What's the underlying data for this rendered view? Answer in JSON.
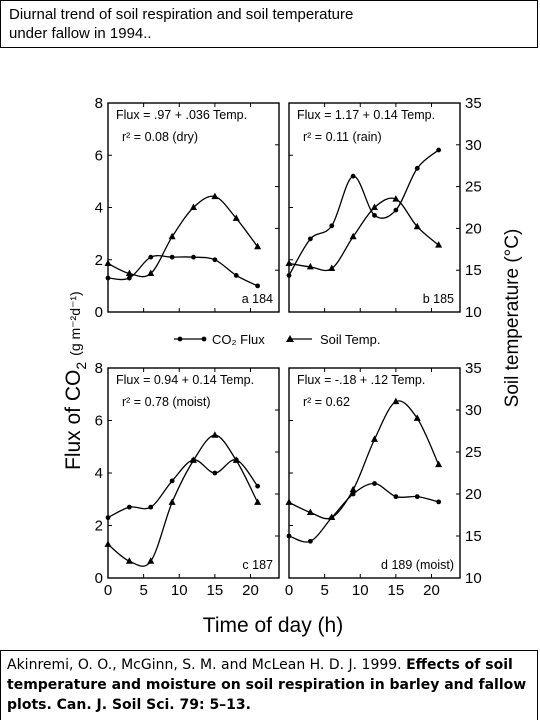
{
  "header": {
    "title_line1": "Diurnal trend of soil respiration and soil temperature",
    "title_line2": "under fallow in 1994.."
  },
  "citation": {
    "plain": "Akinremi, O. O., McGinn, S. M. and McLean H. D. J. 1999. ",
    "bold": "Effects of soil temperature and moisture on soil respiration in barley and fallow plots. Can. J. Soil Sci. 79: 5–13."
  },
  "figure": {
    "ylabel_left_main": "Flux of CO",
    "ylabel_left_sub": "2",
    "ylabel_left_units": "(g m⁻²d⁻¹)",
    "ylabel_right": "Soil temperature (°C)",
    "xlabel": "Time of day (h)",
    "legend_flux": "CO₂ Flux",
    "legend_temp": "Soil Temp."
  },
  "chart_data": [
    {
      "type": "line",
      "panel": "a 184",
      "equation": "Flux = .97 + .036 Temp.",
      "r2": "r² = 0.08   (dry)",
      "xlim": [
        0,
        24
      ],
      "ylim_left": [
        0,
        8
      ],
      "ylim_right": [
        10,
        35
      ],
      "series": [
        {
          "name": "CO₂ Flux",
          "axis": "left",
          "x": [
            0,
            3,
            6,
            9,
            12,
            15,
            18,
            21
          ],
          "values": [
            1.3,
            1.3,
            2.1,
            2.1,
            2.1,
            2.0,
            1.4,
            1.0
          ]
        },
        {
          "name": "Soil Temp.",
          "axis": "right",
          "x": [
            0,
            3,
            6,
            9,
            12,
            15,
            18,
            21
          ],
          "values": [
            15.8,
            14.6,
            14.6,
            19.0,
            22.5,
            23.8,
            21.2,
            17.8
          ]
        }
      ]
    },
    {
      "type": "line",
      "panel": "b 185",
      "equation": "Flux = 1.17 + 0.14 Temp.",
      "r2": "r² = 0.11   (rain)",
      "xlim": [
        0,
        24
      ],
      "ylim_left": [
        0,
        8
      ],
      "ylim_right": [
        10,
        35
      ],
      "series": [
        {
          "name": "CO₂ Flux",
          "axis": "left",
          "x": [
            0,
            3,
            6,
            9,
            12,
            15,
            18,
            21
          ],
          "values": [
            1.4,
            2.8,
            3.3,
            5.2,
            3.7,
            3.9,
            5.5,
            6.2
          ]
        },
        {
          "name": "Soil Temp.",
          "axis": "right",
          "x": [
            0,
            3,
            6,
            9,
            12,
            15,
            18,
            21
          ],
          "values": [
            15.8,
            15.4,
            15.2,
            19.0,
            22.5,
            23.5,
            20.2,
            18.0
          ]
        }
      ]
    },
    {
      "type": "line",
      "panel": "c 187",
      "equation": "Flux = 0.94 + 0.14 Temp.",
      "r2": "r² = 0.78   (moist)",
      "xlim": [
        0,
        24
      ],
      "ylim_left": [
        0,
        8
      ],
      "ylim_right": [
        10,
        35
      ],
      "series": [
        {
          "name": "CO₂ Flux",
          "axis": "left",
          "x": [
            0,
            3,
            6,
            9,
            12,
            15,
            18,
            21
          ],
          "values": [
            2.3,
            2.7,
            2.7,
            3.7,
            4.5,
            4.0,
            4.5,
            3.5
          ]
        },
        {
          "name": "Soil Temp.",
          "axis": "right",
          "x": [
            0,
            3,
            6,
            9,
            12,
            15,
            18,
            21
          ],
          "values": [
            14.0,
            12.0,
            12.0,
            19.0,
            24.0,
            27.0,
            24.0,
            19.0
          ]
        }
      ]
    },
    {
      "type": "line",
      "panel": "d 189 (moist)",
      "equation": "Flux = -.18 + .12 Temp.",
      "r2": "r² = 0.62",
      "xlim": [
        0,
        24
      ],
      "ylim_left": [
        0,
        8
      ],
      "ylim_right": [
        10,
        35
      ],
      "series": [
        {
          "name": "CO₂ Flux",
          "axis": "left",
          "x": [
            0,
            3,
            6,
            9,
            12,
            15,
            18,
            21
          ],
          "values": [
            1.6,
            1.4,
            2.3,
            3.2,
            3.6,
            3.1,
            3.1,
            2.9
          ]
        },
        {
          "name": "Soil Temp.",
          "axis": "right",
          "x": [
            0,
            3,
            6,
            9,
            12,
            15,
            18,
            21
          ],
          "values": [
            19.0,
            17.8,
            17.2,
            20.5,
            26.5,
            31.0,
            29.0,
            23.5
          ]
        }
      ]
    }
  ]
}
